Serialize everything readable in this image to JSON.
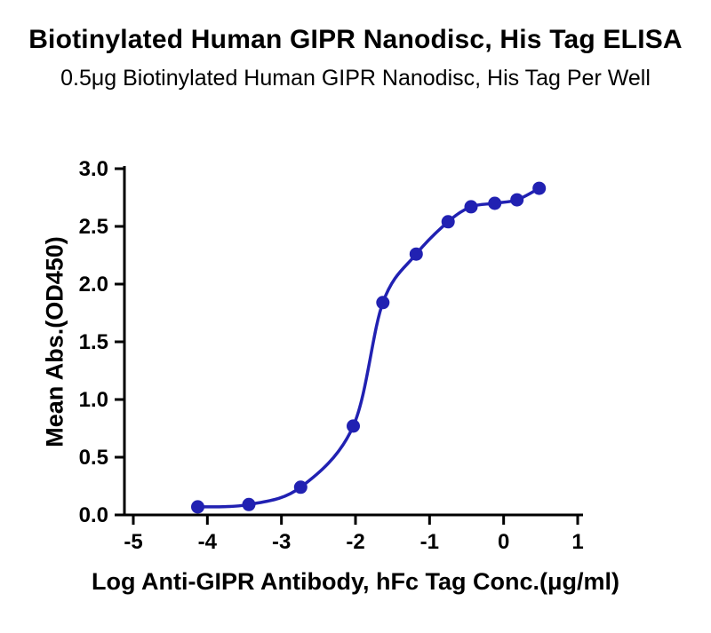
{
  "chart_data": {
    "type": "scatter",
    "title": "Biotinylated Human GIPR Nanodisc, His Tag ELISA",
    "subtitle": "0.5μg Biotinylated Human GIPR Nanodisc, His Tag Per Well",
    "xlabel": "Log Anti-GIPR Antibody, hFc Tag Conc.(μg/ml)",
    "ylabel": "Mean Abs.(OD450)",
    "x": [
      -4.13,
      -3.44,
      -2.74,
      -2.03,
      -1.63,
      -1.18,
      -0.75,
      -0.44,
      -0.12,
      0.18,
      0.48
    ],
    "y": [
      0.07,
      0.09,
      0.24,
      0.77,
      1.84,
      2.26,
      2.54,
      2.67,
      2.7,
      2.73,
      2.83
    ],
    "x_ticks": [
      -5,
      -4,
      -3,
      -2,
      -1,
      0,
      1
    ],
    "x_tick_labels": [
      "-5",
      "-4",
      "-3",
      "-2",
      "-1",
      "0",
      "1"
    ],
    "y_ticks": [
      0,
      0.5,
      1,
      1.5,
      2,
      2.5,
      3
    ],
    "y_tick_labels": [
      "0.0",
      "0.5",
      "1.0",
      "1.5",
      "2.0",
      "2.5",
      "3.0"
    ],
    "xlim": [
      -5,
      1
    ],
    "ylim": [
      0,
      3
    ],
    "grid": false,
    "legend": null,
    "curve_style": "sigmoidal 4PL fit through data points",
    "colors": {
      "line": "#2121b2",
      "marker": "#2121b2",
      "axis": "#000000",
      "text": "#000000"
    }
  }
}
